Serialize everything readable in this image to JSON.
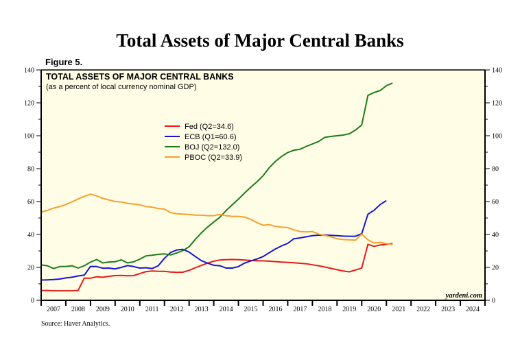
{
  "header": {
    "title": "Total Assets of Major Central Banks",
    "figure_label": "Figure 5."
  },
  "footer": {
    "source": "Source: Haver Analytics."
  },
  "chart_data": {
    "type": "line",
    "title": "TOTAL ASSETS OF MAJOR CENTRAL BANKS",
    "subtitle": "(as a percent of local currency nominal GDP)",
    "watermark": "yardeni.com",
    "xlabel": "",
    "ylabel": "",
    "xlim": [
      2007,
      2025
    ],
    "ylim": [
      0,
      140
    ],
    "y_ticks": [
      0,
      20,
      40,
      60,
      80,
      100,
      120,
      140
    ],
    "x_tick_labels": [
      "2007",
      "2008",
      "2009",
      "2010",
      "2011",
      "2012",
      "2013",
      "2014",
      "2015",
      "2016",
      "2017",
      "2018",
      "2019",
      "2020",
      "2021",
      "2022",
      "2023",
      "2024"
    ],
    "legend_position": "upper-left-center",
    "grid": false,
    "background_color": "#fffde6",
    "series": [
      {
        "name": "Fed (Q2=34.6)",
        "color": "#e8191b",
        "points": [
          [
            2007.0,
            5.9
          ],
          [
            2007.25,
            5.9
          ],
          [
            2007.5,
            5.8
          ],
          [
            2007.75,
            5.8
          ],
          [
            2008.0,
            5.8
          ],
          [
            2008.25,
            5.8
          ],
          [
            2008.5,
            6.0
          ],
          [
            2008.75,
            13.5
          ],
          [
            2009.0,
            13.4
          ],
          [
            2009.25,
            14.3
          ],
          [
            2009.5,
            14.0
          ],
          [
            2009.75,
            14.6
          ],
          [
            2010.0,
            15.0
          ],
          [
            2010.25,
            15.1
          ],
          [
            2010.5,
            14.9
          ],
          [
            2010.75,
            15.0
          ],
          [
            2011.0,
            16.2
          ],
          [
            2011.25,
            17.4
          ],
          [
            2011.5,
            17.8
          ],
          [
            2011.75,
            17.6
          ],
          [
            2012.0,
            17.6
          ],
          [
            2012.25,
            17.2
          ],
          [
            2012.5,
            17.0
          ],
          [
            2012.75,
            17.1
          ],
          [
            2013.0,
            18.2
          ],
          [
            2013.25,
            19.8
          ],
          [
            2013.5,
            21.2
          ],
          [
            2013.75,
            22.6
          ],
          [
            2014.0,
            23.8
          ],
          [
            2014.25,
            24.5
          ],
          [
            2014.5,
            24.7
          ],
          [
            2014.75,
            24.8
          ],
          [
            2015.0,
            24.7
          ],
          [
            2015.25,
            24.5
          ],
          [
            2015.5,
            24.2
          ],
          [
            2015.75,
            24.0
          ],
          [
            2016.0,
            24.0
          ],
          [
            2016.25,
            23.8
          ],
          [
            2016.5,
            23.5
          ],
          [
            2016.75,
            23.2
          ],
          [
            2017.0,
            23.0
          ],
          [
            2017.25,
            22.8
          ],
          [
            2017.5,
            22.5
          ],
          [
            2017.75,
            22.2
          ],
          [
            2018.0,
            21.6
          ],
          [
            2018.25,
            21.0
          ],
          [
            2018.5,
            20.2
          ],
          [
            2018.75,
            19.4
          ],
          [
            2019.0,
            18.6
          ],
          [
            2019.25,
            17.8
          ],
          [
            2019.5,
            17.3
          ],
          [
            2019.75,
            18.4
          ],
          [
            2020.0,
            19.6
          ],
          [
            2020.25,
            34.0
          ],
          [
            2020.5,
            32.8
          ],
          [
            2020.75,
            33.6
          ],
          [
            2021.0,
            34.0
          ],
          [
            2021.25,
            34.6
          ]
        ]
      },
      {
        "name": "ECB (Q1=60.6)",
        "color": "#1414d2",
        "points": [
          [
            2007.0,
            12.3
          ],
          [
            2007.25,
            12.4
          ],
          [
            2007.5,
            12.6
          ],
          [
            2007.75,
            12.9
          ],
          [
            2008.0,
            13.6
          ],
          [
            2008.25,
            14.0
          ],
          [
            2008.5,
            14.8
          ],
          [
            2008.75,
            15.3
          ],
          [
            2009.0,
            20.6
          ],
          [
            2009.25,
            20.5
          ],
          [
            2009.5,
            19.5
          ],
          [
            2009.75,
            19.6
          ],
          [
            2010.0,
            19.1
          ],
          [
            2010.25,
            20.0
          ],
          [
            2010.5,
            21.1
          ],
          [
            2010.75,
            20.5
          ],
          [
            2011.0,
            19.6
          ],
          [
            2011.25,
            19.8
          ],
          [
            2011.5,
            19.3
          ],
          [
            2011.75,
            21.0
          ],
          [
            2012.0,
            25.5
          ],
          [
            2012.25,
            29.1
          ],
          [
            2012.5,
            30.6
          ],
          [
            2012.75,
            31.0
          ],
          [
            2013.0,
            29.3
          ],
          [
            2013.25,
            26.6
          ],
          [
            2013.5,
            24.1
          ],
          [
            2013.75,
            22.6
          ],
          [
            2014.0,
            21.3
          ],
          [
            2014.25,
            21.0
          ],
          [
            2014.5,
            19.6
          ],
          [
            2014.75,
            19.6
          ],
          [
            2015.0,
            20.5
          ],
          [
            2015.25,
            22.6
          ],
          [
            2015.5,
            23.9
          ],
          [
            2015.75,
            25.1
          ],
          [
            2016.0,
            26.6
          ],
          [
            2016.25,
            28.9
          ],
          [
            2016.5,
            31.2
          ],
          [
            2016.75,
            33.1
          ],
          [
            2017.0,
            34.6
          ],
          [
            2017.25,
            37.4
          ],
          [
            2017.5,
            37.9
          ],
          [
            2017.75,
            38.6
          ],
          [
            2018.0,
            39.3
          ],
          [
            2018.25,
            39.6
          ],
          [
            2018.5,
            39.7
          ],
          [
            2018.75,
            39.5
          ],
          [
            2019.0,
            39.3
          ],
          [
            2019.25,
            39.0
          ],
          [
            2019.5,
            38.9
          ],
          [
            2019.75,
            38.9
          ],
          [
            2020.0,
            40.5
          ],
          [
            2020.25,
            52.3
          ],
          [
            2020.5,
            54.7
          ],
          [
            2020.75,
            58.2
          ],
          [
            2021.0,
            60.6
          ]
        ]
      },
      {
        "name": "BOJ (Q2=132.0)",
        "color": "#1a7d1a",
        "points": [
          [
            2007.0,
            21.5
          ],
          [
            2007.25,
            21.0
          ],
          [
            2007.5,
            19.3
          ],
          [
            2007.75,
            20.5
          ],
          [
            2008.0,
            20.5
          ],
          [
            2008.25,
            21.0
          ],
          [
            2008.5,
            19.6
          ],
          [
            2008.75,
            21.0
          ],
          [
            2009.0,
            23.2
          ],
          [
            2009.25,
            24.8
          ],
          [
            2009.5,
            22.7
          ],
          [
            2009.75,
            23.3
          ],
          [
            2010.0,
            23.4
          ],
          [
            2010.25,
            24.6
          ],
          [
            2010.5,
            22.7
          ],
          [
            2010.75,
            23.4
          ],
          [
            2011.0,
            25.0
          ],
          [
            2011.25,
            27.0
          ],
          [
            2011.5,
            27.4
          ],
          [
            2011.75,
            27.9
          ],
          [
            2012.0,
            28.2
          ],
          [
            2012.25,
            27.6
          ],
          [
            2012.5,
            28.8
          ],
          [
            2012.75,
            30.2
          ],
          [
            2013.0,
            32.6
          ],
          [
            2013.25,
            37.0
          ],
          [
            2013.5,
            41.0
          ],
          [
            2013.75,
            44.5
          ],
          [
            2014.0,
            47.6
          ],
          [
            2014.25,
            50.5
          ],
          [
            2014.5,
            54.5
          ],
          [
            2014.75,
            58.1
          ],
          [
            2015.0,
            61.5
          ],
          [
            2015.25,
            65.2
          ],
          [
            2015.5,
            68.7
          ],
          [
            2015.75,
            72.0
          ],
          [
            2016.0,
            75.7
          ],
          [
            2016.25,
            80.6
          ],
          [
            2016.5,
            84.4
          ],
          [
            2016.75,
            87.4
          ],
          [
            2017.0,
            89.8
          ],
          [
            2017.25,
            91.2
          ],
          [
            2017.5,
            91.8
          ],
          [
            2017.75,
            93.5
          ],
          [
            2018.0,
            95.0
          ],
          [
            2018.25,
            96.5
          ],
          [
            2018.5,
            99.0
          ],
          [
            2018.75,
            99.6
          ],
          [
            2019.0,
            100.0
          ],
          [
            2019.25,
            100.4
          ],
          [
            2019.5,
            101.2
          ],
          [
            2019.75,
            103.5
          ],
          [
            2020.0,
            106.6
          ],
          [
            2020.25,
            124.5
          ],
          [
            2020.5,
            126.3
          ],
          [
            2020.75,
            127.5
          ],
          [
            2021.0,
            130.4
          ],
          [
            2021.25,
            132.0
          ]
        ]
      },
      {
        "name": "PBOC (Q2=33.9)",
        "color": "#f5a02a",
        "points": [
          [
            2007.0,
            53.6
          ],
          [
            2007.25,
            54.6
          ],
          [
            2007.5,
            56.0
          ],
          [
            2007.75,
            56.9
          ],
          [
            2008.0,
            58.2
          ],
          [
            2008.25,
            59.8
          ],
          [
            2008.5,
            61.6
          ],
          [
            2008.75,
            63.2
          ],
          [
            2009.0,
            64.5
          ],
          [
            2009.25,
            63.4
          ],
          [
            2009.5,
            61.9
          ],
          [
            2009.75,
            61.0
          ],
          [
            2010.0,
            60.0
          ],
          [
            2010.25,
            59.8
          ],
          [
            2010.5,
            58.9
          ],
          [
            2010.75,
            58.5
          ],
          [
            2011.0,
            58.0
          ],
          [
            2011.25,
            57.0
          ],
          [
            2011.5,
            56.6
          ],
          [
            2011.75,
            55.8
          ],
          [
            2012.0,
            55.4
          ],
          [
            2012.25,
            53.3
          ],
          [
            2012.5,
            52.6
          ],
          [
            2012.75,
            52.4
          ],
          [
            2013.0,
            52.1
          ],
          [
            2013.25,
            51.8
          ],
          [
            2013.5,
            51.7
          ],
          [
            2013.75,
            51.4
          ],
          [
            2014.0,
            51.4
          ],
          [
            2014.25,
            52.2
          ],
          [
            2014.5,
            51.4
          ],
          [
            2014.75,
            51.0
          ],
          [
            2015.0,
            51.0
          ],
          [
            2015.25,
            50.6
          ],
          [
            2015.5,
            49.2
          ],
          [
            2015.75,
            47.2
          ],
          [
            2016.0,
            45.6
          ],
          [
            2016.25,
            46.0
          ],
          [
            2016.5,
            44.9
          ],
          [
            2016.75,
            44.4
          ],
          [
            2017.0,
            44.2
          ],
          [
            2017.25,
            42.8
          ],
          [
            2017.5,
            41.8
          ],
          [
            2017.75,
            41.6
          ],
          [
            2018.0,
            41.8
          ],
          [
            2018.25,
            40.2
          ],
          [
            2018.5,
            39.4
          ],
          [
            2018.75,
            38.6
          ],
          [
            2019.0,
            37.4
          ],
          [
            2019.25,
            36.9
          ],
          [
            2019.5,
            36.7
          ],
          [
            2019.75,
            36.6
          ],
          [
            2020.0,
            40.2
          ],
          [
            2020.25,
            36.8
          ],
          [
            2020.5,
            34.8
          ],
          [
            2020.75,
            35.2
          ],
          [
            2021.0,
            34.4
          ],
          [
            2021.25,
            33.9
          ]
        ]
      }
    ]
  }
}
